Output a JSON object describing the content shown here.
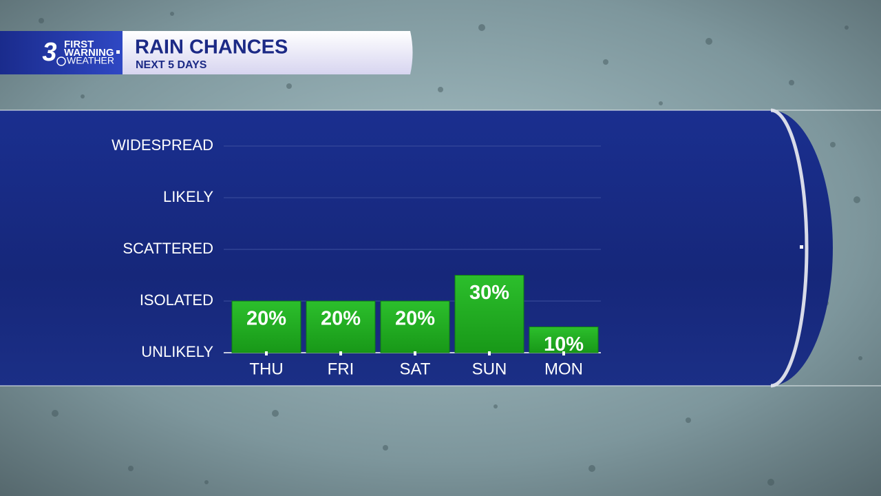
{
  "logo": {
    "number": "3",
    "line1": "FIRST",
    "line2": "WARNING",
    "line3": "WEATHER"
  },
  "chart_data": {
    "type": "bar",
    "title": "RAIN CHANCES",
    "subtitle": "NEXT 5 DAYS",
    "categories": [
      "THU",
      "FRI",
      "SAT",
      "SUN",
      "MON"
    ],
    "values": [
      20,
      20,
      20,
      30,
      10
    ],
    "value_labels": [
      "20%",
      "20%",
      "20%",
      "30%",
      "10%"
    ],
    "color": "#1ea51e",
    "ylim": [
      0,
      80
    ],
    "yticks": [
      {
        "value": 0,
        "label": "UNLIKELY"
      },
      {
        "value": 20,
        "label": "ISOLATED"
      },
      {
        "value": 40,
        "label": "SCATTERED"
      },
      {
        "value": 60,
        "label": "LIKELY"
      },
      {
        "value": 80,
        "label": "WIDESPREAD"
      }
    ],
    "grid": true
  }
}
